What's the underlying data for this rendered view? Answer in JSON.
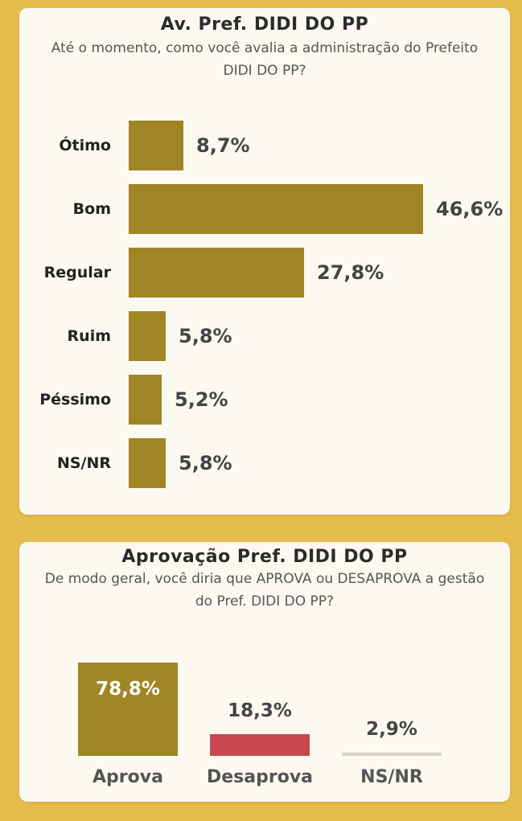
{
  "colors": {
    "background": "#E6BC4F",
    "card": "#FCF9F1",
    "bar_gold": "#A08524",
    "bar_red": "#C9484F",
    "bar_gray": "#D6D3CF"
  },
  "chart_data": [
    {
      "type": "bar",
      "orientation": "horizontal",
      "title": "Av. Pref. DIDI DO PP",
      "subtitle": "Até o momento, como você avalia a administração do Prefeito DIDI DO PP?",
      "categories": [
        "Ótimo",
        "Bom",
        "Regular",
        "Ruim",
        "Péssimo",
        "NS/NR"
      ],
      "values": [
        8.7,
        46.6,
        27.8,
        5.8,
        5.2,
        5.8
      ],
      "value_labels": [
        "8,7%",
        "46,6%",
        "27,8%",
        "5,8%",
        "5,2%",
        "5,8%"
      ],
      "grid": false
    },
    {
      "type": "bar",
      "orientation": "vertical",
      "title": "Aprovação Pref. DIDI DO PP",
      "subtitle": "De modo geral, você diria que APROVA ou DESAPROVA a gestão do Pref. DIDI DO PP?",
      "categories": [
        "Aprova",
        "Desaprova",
        "NS/NR"
      ],
      "values": [
        78.8,
        18.3,
        2.9
      ],
      "value_labels": [
        "78,8%",
        "18,3%",
        "2,9%"
      ],
      "bar_colors": [
        "#A08524",
        "#C9484F",
        "#D6D3CF"
      ],
      "grid": false
    }
  ]
}
